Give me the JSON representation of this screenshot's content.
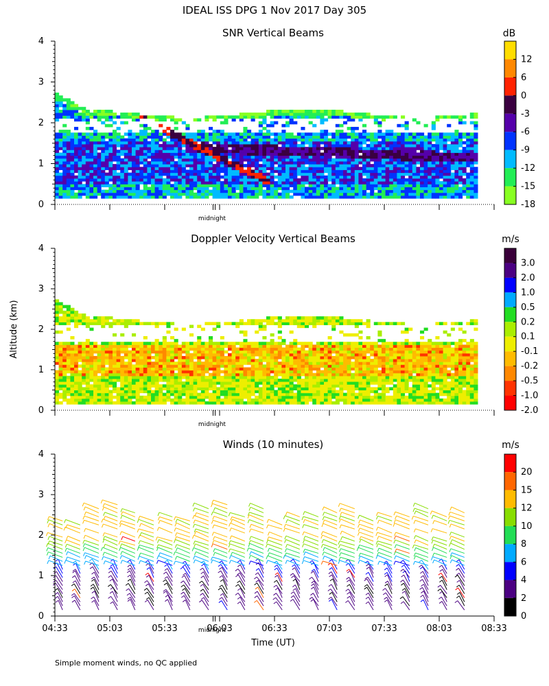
{
  "header": {
    "title": "IDEAL ISS DPG    1 Nov 2017 Day 305",
    "ylabel": "Altitude (km)",
    "xlabel": "Time (UT)",
    "footnote": "Simple moment winds, no QC applied",
    "midnight_label": "midnight"
  },
  "colors": {
    "rainbow": [
      "#000000",
      "#4b0082",
      "#0000ff",
      "#00aaff",
      "#00dd66",
      "#66ee00",
      "#cccc00",
      "#ffaa00",
      "#ff3300",
      "#cc0000"
    ],
    "velocity": [
      "#3a003a",
      "#4b0082",
      "#0000ff",
      "#00aaff",
      "#22dd22",
      "#aaee00",
      "#eeee00",
      "#ffbb00",
      "#ff8800",
      "#ff3300",
      "#ff0000"
    ]
  },
  "chart_data": [
    {
      "type": "heatmap",
      "title": "SNR Vertical Beams",
      "units": "dB",
      "ylabel": "Altitude (km)",
      "ylim": [
        0,
        4
      ],
      "yticks": [
        0,
        1,
        2,
        3,
        4
      ],
      "xlim_hours_ut": [
        4.55,
        8.55
      ],
      "midnight_hour_ut": 6.0,
      "colorbar_ticks": [
        "12",
        "6",
        "0",
        "-3",
        "-6",
        "-9",
        "-12",
        "-15",
        "-18"
      ],
      "colorbar_colors": [
        "#ffdd00",
        "#ff8800",
        "#ff2200",
        "#3a0040",
        "#5500aa",
        "#0033ff",
        "#00bbff",
        "#22ee55",
        "#88ff22"
      ],
      "features": [
        {
          "name": "bright descending layer",
          "start": [
            5.3,
            2.1
          ],
          "end": [
            6.5,
            0.5
          ],
          "dB": 6
        },
        {
          "name": "strong layer",
          "start": [
            6.5,
            1.3
          ],
          "end": [
            8.4,
            1.1
          ],
          "dB": -3
        },
        {
          "name": "upper weak layer",
          "start": [
            4.55,
            2.7
          ],
          "end": [
            8.4,
            2.1
          ],
          "dB": -15
        }
      ]
    },
    {
      "type": "heatmap",
      "title": "Doppler Velocity Vertical Beams",
      "units": "m/s",
      "ylim": [
        0,
        4
      ],
      "yticks": [
        0,
        1,
        2,
        3,
        4
      ],
      "xlim_hours_ut": [
        4.55,
        8.55
      ],
      "midnight_hour_ut": 6.0,
      "colorbar_ticks": [
        "3.0",
        "2.0",
        "1.0",
        "0.5",
        "0.2",
        "0.1",
        "-0.1",
        "-0.2",
        "-0.5",
        "-1.0",
        "-2.0"
      ],
      "colorbar_colors": [
        "#3a003a",
        "#4b0082",
        "#0000ff",
        "#00aaff",
        "#22dd22",
        "#aaee00",
        "#eeee00",
        "#ffbb00",
        "#ff8800",
        "#ff3300",
        "#ff0000"
      ],
      "features": [
        {
          "name": "mostly weak downward/upward motion",
          "range_m_s": [
            -0.5,
            0.2
          ]
        }
      ]
    },
    {
      "type": "scatter",
      "title": "Winds (10 minutes)",
      "units": "m/s",
      "ylim": [
        0,
        4
      ],
      "yticks": [
        0,
        1,
        2,
        3,
        4
      ],
      "xlabel": "Time (UT)",
      "xlim_hours_ut": [
        4.55,
        8.55
      ],
      "midnight_hour_ut": 6.0,
      "xtick_labels": [
        "04:33",
        "05:03",
        "05:33",
        "06:03",
        "06:33",
        "07:03",
        "07:33",
        "08:03",
        "08:33"
      ],
      "colorbar_ticks": [
        "20",
        "15",
        "12",
        "10",
        "8",
        "6",
        "4",
        "2",
        "0"
      ],
      "colorbar_colors": [
        "#ff0000",
        "#ff6600",
        "#ffbb00",
        "#88dd00",
        "#22dd55",
        "#00aaff",
        "#0000ff",
        "#4b0082",
        "#000000"
      ],
      "profile_times_hours_ut": [
        4.62,
        4.78,
        4.95,
        5.12,
        5.28,
        5.45,
        5.62,
        5.78,
        5.95,
        6.12,
        6.28,
        6.45,
        6.62,
        6.78,
        6.95,
        7.12,
        7.28,
        7.45,
        7.62,
        7.78,
        7.95,
        8.12,
        8.28
      ],
      "speed_profile_m_s": [
        {
          "alt_km": 0.2,
          "speed": 3
        },
        {
          "alt_km": 0.6,
          "speed": 2
        },
        {
          "alt_km": 1.0,
          "speed": 4
        },
        {
          "alt_km": 1.3,
          "speed": 7
        },
        {
          "alt_km": 1.5,
          "speed": 9
        },
        {
          "alt_km": 1.7,
          "speed": 11
        },
        {
          "alt_km": 2.0,
          "speed": 13
        },
        {
          "alt_km": 2.4,
          "speed": 12
        },
        {
          "alt_km": 2.7,
          "speed": 12
        }
      ]
    }
  ]
}
